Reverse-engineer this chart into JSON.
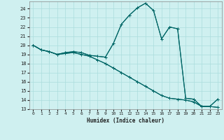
{
  "title": "",
  "xlabel": "Humidex (Indice chaleur)",
  "bg_color": "#cff0f0",
  "grid_color": "#aadddd",
  "line_color": "#006666",
  "xlim": [
    -0.5,
    23.5
  ],
  "ylim": [
    13,
    24.8
  ],
  "yticks": [
    13,
    14,
    15,
    16,
    17,
    18,
    19,
    20,
    21,
    22,
    23,
    24
  ],
  "xticks": [
    0,
    1,
    2,
    3,
    4,
    5,
    6,
    7,
    8,
    9,
    10,
    11,
    12,
    13,
    14,
    15,
    16,
    17,
    18,
    19,
    20,
    21,
    22,
    23
  ],
  "upper1_x": [
    0,
    1,
    2,
    3,
    4,
    5,
    6,
    7,
    8,
    9,
    10,
    11,
    12,
    13,
    14,
    15,
    16,
    17,
    18,
    19,
    20,
    21,
    22,
    23
  ],
  "upper1_y": [
    20.0,
    19.5,
    19.3,
    19.0,
    19.2,
    19.3,
    19.2,
    18.9,
    18.8,
    18.7,
    20.2,
    22.3,
    23.3,
    24.1,
    24.6,
    23.8,
    20.7,
    22.0,
    21.8,
    14.2,
    14.1,
    13.3,
    13.3,
    13.2
  ],
  "upper2_x": [
    0,
    1,
    2,
    3,
    4,
    5,
    6,
    7,
    8,
    9,
    10,
    11,
    12,
    13,
    14,
    15,
    16,
    17,
    18,
    19,
    20,
    21,
    22,
    23
  ],
  "upper2_y": [
    20.0,
    19.5,
    19.3,
    19.0,
    19.2,
    19.3,
    19.2,
    18.9,
    18.8,
    18.7,
    20.2,
    22.3,
    23.3,
    24.1,
    24.6,
    23.8,
    20.7,
    22.0,
    21.8,
    14.2,
    14.1,
    13.3,
    13.3,
    14.1
  ],
  "lower1_x": [
    0,
    1,
    2,
    3,
    4,
    5,
    6,
    7,
    8,
    9,
    10,
    11,
    12,
    13,
    14,
    15,
    16,
    17,
    18,
    19,
    20,
    21,
    22,
    23
  ],
  "lower1_y": [
    20.0,
    19.5,
    19.3,
    19.0,
    19.1,
    19.2,
    19.0,
    18.8,
    18.4,
    18.0,
    17.5,
    17.0,
    16.5,
    16.0,
    15.5,
    15.0,
    14.5,
    14.2,
    14.1,
    14.0,
    13.8,
    13.3,
    13.3,
    13.2
  ],
  "lower2_x": [
    0,
    1,
    2,
    3,
    4,
    5,
    6,
    7,
    8,
    9,
    10,
    11,
    12,
    13,
    14,
    15,
    16,
    17,
    18,
    19,
    20,
    21,
    22,
    23
  ],
  "lower2_y": [
    20.0,
    19.5,
    19.3,
    19.0,
    19.1,
    19.2,
    19.0,
    18.8,
    18.4,
    18.0,
    17.5,
    17.0,
    16.5,
    16.0,
    15.5,
    15.0,
    14.5,
    14.2,
    14.1,
    14.0,
    13.8,
    13.3,
    13.3,
    14.1
  ]
}
